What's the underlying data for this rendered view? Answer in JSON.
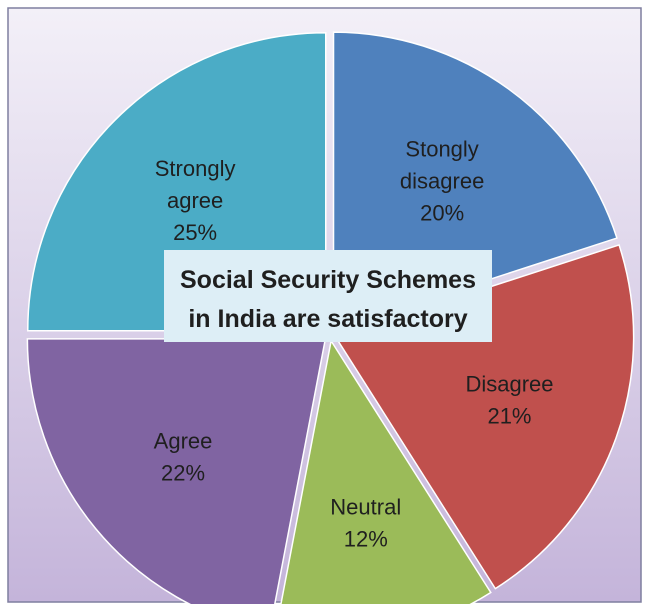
{
  "chart_data": {
    "type": "pie",
    "title": "Social Security Schemes in India are satisfactory",
    "slices": [
      {
        "label": "Stongly disagree",
        "label_lines": [
          "Stongly",
          "disagree"
        ],
        "percent_text": "20%",
        "value": 20,
        "color": "#4F81BD"
      },
      {
        "label": "Disagree",
        "label_lines": [
          "Disagree"
        ],
        "percent_text": "21%",
        "value": 21,
        "color": "#C0504D"
      },
      {
        "label": "Neutral",
        "label_lines": [
          "Neutral"
        ],
        "percent_text": "12%",
        "value": 12,
        "color": "#9BBB59"
      },
      {
        "label": "Agree",
        "label_lines": [
          "Agree"
        ],
        "percent_text": "22%",
        "value": 22,
        "color": "#8064A2"
      },
      {
        "label": "Strongly agree",
        "label_lines": [
          "Strongly",
          "agree"
        ],
        "percent_text": "25%",
        "value": 25,
        "color": "#4BACC6"
      }
    ],
    "start_angle_deg": 0,
    "direction": "clockwise",
    "exploded": true,
    "legend": "none"
  }
}
